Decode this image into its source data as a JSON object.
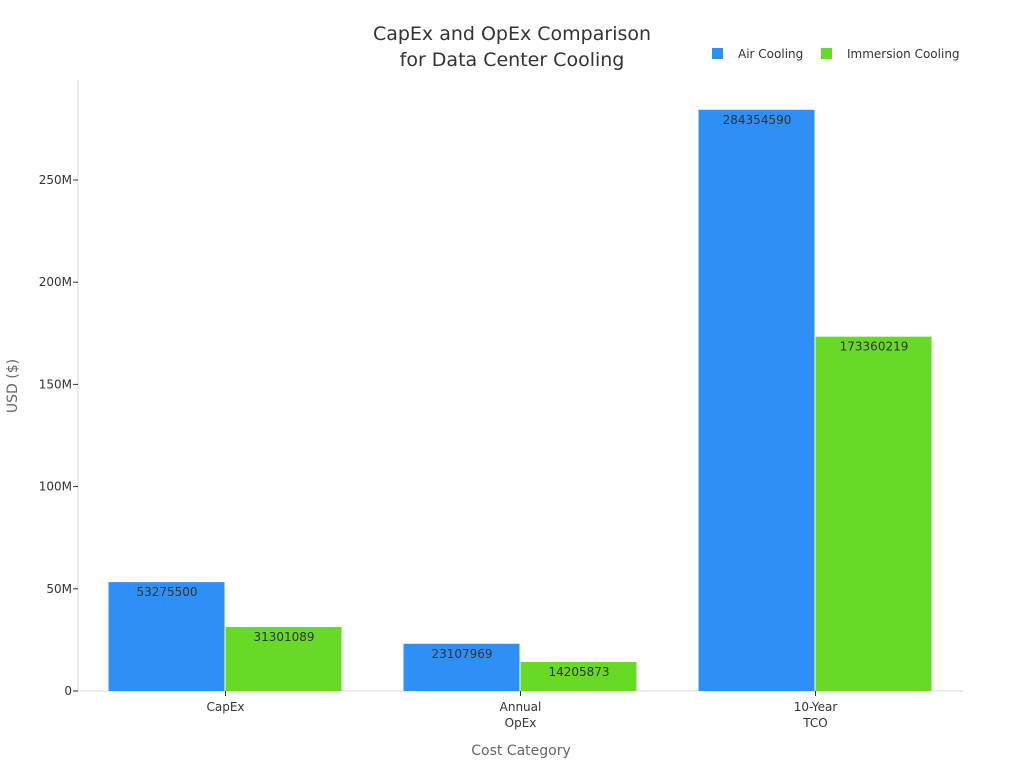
{
  "chart_data": {
    "type": "bar",
    "title_lines": [
      "CapEx and OpEx Comparison",
      "for Data Center Cooling"
    ],
    "xlabel": "Cost Category",
    "ylabel": "USD ($)",
    "categories": [
      [
        "CapEx"
      ],
      [
        "Annual",
        "OpEx"
      ],
      [
        "10-Year",
        "TCO"
      ]
    ],
    "series": [
      {
        "name": "Air Cooling",
        "color": "#2e90f6",
        "values": [
          53275500,
          23107969,
          284354590
        ],
        "value_labels": [
          "53275500",
          "23107969",
          "284354590"
        ]
      },
      {
        "name": "Immersion Cooling",
        "color": "#66da26",
        "values": [
          31301089,
          14205873,
          173360219
        ],
        "value_labels": [
          "31301089",
          "14205873",
          "173360219"
        ]
      }
    ],
    "ylim": [
      0,
      300000000
    ],
    "yticks": [
      0,
      50000000,
      100000000,
      150000000,
      200000000,
      250000000
    ],
    "ytick_labels": [
      "0",
      "50M",
      "100M",
      "150M",
      "200M",
      "250M"
    ],
    "legend": "top-right",
    "grid": false
  }
}
